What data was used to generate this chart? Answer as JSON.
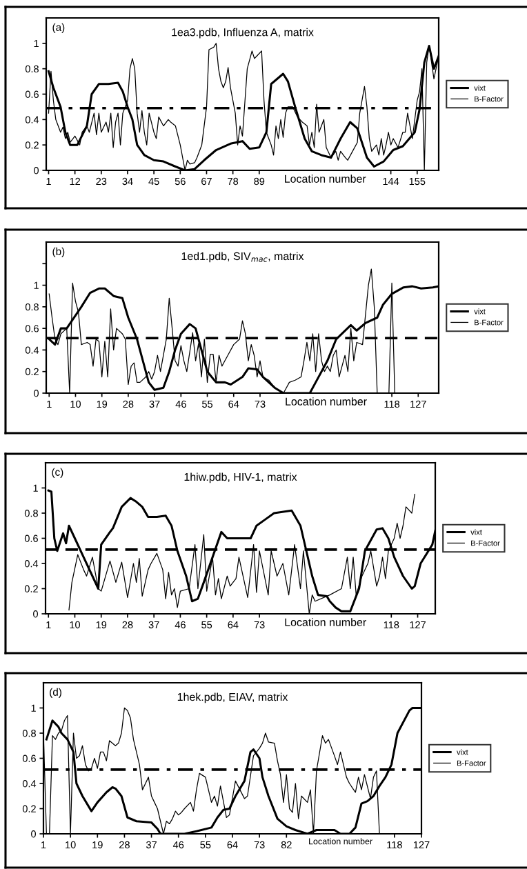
{
  "chart_data": [
    {
      "type": "line",
      "title": "1ea3.pdb, Influenza A, matrix",
      "xlabel": "Location number",
      "annotations": [
        "(a)"
      ],
      "xlim": [
        0,
        164
      ],
      "ylim": [
        0,
        1.2
      ],
      "xticks": [
        1,
        12,
        23,
        34,
        45,
        56,
        67,
        78,
        89,
        144,
        155
      ],
      "yticks": [
        0,
        0.2,
        0.4,
        0.6,
        0.8,
        1
      ],
      "legend": "right",
      "grid": false,
      "ref_lines": [
        {
          "axis": "y",
          "value": 0.49,
          "color": "#000000",
          "line_style": "dashdot"
        }
      ],
      "series": [
        {
          "name": "vixt",
          "color": "#000000",
          "x": [
            1,
            3,
            6,
            8,
            10,
            13,
            17,
            19,
            22,
            26,
            30,
            32,
            34,
            36,
            38,
            41,
            45,
            49,
            54,
            58,
            62,
            66,
            71,
            77,
            82,
            85,
            89,
            92,
            94,
            99,
            101,
            104,
            108,
            111,
            115,
            119,
            123,
            127,
            130,
            134,
            137,
            141,
            145,
            149,
            154,
            156,
            158,
            160,
            162,
            164
          ],
          "values": [
            0.78,
            0.65,
            0.5,
            0.3,
            0.2,
            0.2,
            0.35,
            0.6,
            0.68,
            0.68,
            0.69,
            0.62,
            0.5,
            0.4,
            0.2,
            0.12,
            0.08,
            0.07,
            0.03,
            0.0,
            0.01,
            0.08,
            0.16,
            0.21,
            0.23,
            0.17,
            0.18,
            0.3,
            0.68,
            0.76,
            0.7,
            0.5,
            0.25,
            0.15,
            0.12,
            0.1,
            0.25,
            0.38,
            0.33,
            0.1,
            0.03,
            0.07,
            0.16,
            0.19,
            0.3,
            0.48,
            0.85,
            0.98,
            0.8,
            0.9
          ]
        },
        {
          "name": "B-Factor",
          "color": "#000000",
          "x": [
            1,
            2,
            3,
            4,
            6,
            7,
            8,
            9,
            10,
            12,
            14,
            15,
            17,
            18,
            20,
            21,
            22,
            23,
            25,
            26,
            27,
            28,
            29,
            30,
            31,
            32,
            34,
            35,
            36,
            37,
            38,
            39,
            40,
            41,
            42,
            43,
            45,
            46,
            47,
            49,
            51,
            52,
            54,
            56,
            58,
            59,
            60,
            62,
            63,
            65,
            67,
            68,
            69,
            70,
            71,
            72,
            73,
            74,
            75,
            76,
            77,
            79,
            80,
            81,
            82,
            84,
            86,
            87,
            88,
            90,
            91,
            92,
            94,
            95,
            96,
            97,
            98,
            99,
            100,
            101,
            103,
            105,
            107,
            109,
            110,
            111,
            112,
            113,
            114,
            116,
            117,
            119,
            121,
            122,
            123,
            125,
            126,
            128,
            130,
            131,
            133,
            134,
            135,
            136,
            138,
            139,
            140,
            141,
            142,
            143,
            144,
            145,
            147,
            149,
            150,
            151,
            153,
            155,
            156,
            157,
            158,
            159,
            160,
            162,
            164
          ],
          "values": [
            0.45,
            0.78,
            0.55,
            0.4,
            0.3,
            0.34,
            0.25,
            0.3,
            0.22,
            0.27,
            0.2,
            0.3,
            0.35,
            0.3,
            0.45,
            0.28,
            0.45,
            0.3,
            0.38,
            0.3,
            0.45,
            0.18,
            0.38,
            0.45,
            0.2,
            0.45,
            0.55,
            0.8,
            0.88,
            0.8,
            0.45,
            0.3,
            0.47,
            0.3,
            0.2,
            0.45,
            0.3,
            0.25,
            0.42,
            0.35,
            0.4,
            0.38,
            0.35,
            0.2,
            0.0,
            0.08,
            0.05,
            0.06,
            0.1,
            0.2,
            0.5,
            0.95,
            0.96,
            0.97,
            1.0,
            0.8,
            0.7,
            0.65,
            0.7,
            0.81,
            0.65,
            0.45,
            0.2,
            0.35,
            0.27,
            0.8,
            0.94,
            0.88,
            0.9,
            0.94,
            0.55,
            0.3,
            0.2,
            0.12,
            0.35,
            0.25,
            0.4,
            0.26,
            0.45,
            0.5,
            0.5,
            0.42,
            0.38,
            0.35,
            0.2,
            0.3,
            0.18,
            0.52,
            0.3,
            0.4,
            0.18,
            0.1,
            0.15,
            0.08,
            0.15,
            0.1,
            0.08,
            0.15,
            0.22,
            0.45,
            0.66,
            0.5,
            0.25,
            0.15,
            0.2,
            0.12,
            0.25,
            0.12,
            0.2,
            0.3,
            0.2,
            0.25,
            0.18,
            0.3,
            0.3,
            0.45,
            0.25,
            0.55,
            0.62,
            0.8,
            0.0,
            0.85,
            0.98,
            0.72,
            0.9
          ]
        }
      ]
    },
    {
      "type": "line",
      "title": "1ed1.pdb, SIV$_{mac}$, matrix",
      "xlabel": "Location number",
      "annotations": [
        "(b)"
      ],
      "xlim": [
        0,
        134
      ],
      "ylim": [
        0,
        1.4
      ],
      "xticks": [
        1,
        10,
        19,
        28,
        37,
        46,
        55,
        64,
        73,
        118,
        127
      ],
      "yticks": [
        0,
        0.2,
        0.4,
        0.6,
        0.8,
        1,
        {
          "value": 1.2,
          "label": null
        }
      ],
      "legend": "right",
      "grid": false,
      "ref_lines": [
        {
          "axis": "y",
          "value": 0.51,
          "color": "#000000",
          "line_style": "dashed"
        }
      ],
      "series": [
        {
          "name": "vixt",
          "color": "#000000",
          "x": [
            1,
            3,
            5,
            7,
            9,
            12,
            15,
            18,
            20,
            23,
            26,
            28,
            31,
            33,
            35,
            37,
            40,
            42,
            44,
            46,
            49,
            51,
            53,
            55,
            58,
            61,
            63,
            67,
            69,
            72,
            74,
            78,
            81,
            90,
            92,
            96,
            99,
            104,
            106,
            109,
            113,
            115,
            118,
            122,
            125,
            128,
            132,
            134
          ],
          "values": [
            0.5,
            0.45,
            0.6,
            0.6,
            0.68,
            0.8,
            0.93,
            0.97,
            0.97,
            0.9,
            0.88,
            0.7,
            0.5,
            0.3,
            0.1,
            0.03,
            0.05,
            0.2,
            0.4,
            0.55,
            0.64,
            0.6,
            0.4,
            0.2,
            0.1,
            0.1,
            0.08,
            0.15,
            0.23,
            0.22,
            0.15,
            0.05,
            0.0,
            0.0,
            0.1,
            0.3,
            0.5,
            0.63,
            0.58,
            0.65,
            0.7,
            0.82,
            0.92,
            0.98,
            0.99,
            0.97,
            0.98,
            0.99
          ]
        },
        {
          "name": "B-Factor",
          "color": "#000000",
          "x": [
            1,
            2,
            3,
            4,
            5,
            7,
            8,
            9,
            10,
            11,
            12,
            14,
            15,
            16,
            17,
            18,
            19,
            20,
            21,
            22,
            23,
            24,
            26,
            27,
            28,
            29,
            30,
            31,
            32,
            34,
            35,
            36,
            37,
            38,
            39,
            41,
            42,
            43,
            44,
            45,
            46,
            47,
            48,
            50,
            51,
            52,
            53,
            54,
            55,
            56,
            57,
            58,
            59,
            60,
            61,
            62,
            64,
            66,
            67,
            68,
            69,
            70,
            71,
            72,
            73,
            74,
            76,
            78,
            81,
            82,
            83,
            85,
            87,
            88,
            89,
            90,
            91,
            92,
            93,
            94,
            95,
            96,
            97,
            98,
            99,
            100,
            101,
            102,
            103,
            104,
            105,
            106,
            108,
            110,
            111,
            112,
            113,
            117,
            118,
            119
          ],
          "values": [
            0.92,
            0.7,
            0.5,
            0.45,
            0.55,
            0.6,
            0.0,
            1.02,
            0.85,
            0.75,
            0.45,
            0.47,
            0.45,
            0.25,
            0.5,
            0.48,
            0.15,
            0.48,
            0.15,
            0.78,
            0.4,
            0.6,
            0.55,
            0.5,
            0.08,
            0.25,
            0.28,
            0.1,
            0.1,
            0.15,
            0.2,
            0.13,
            0.2,
            0.35,
            0.2,
            0.5,
            0.88,
            0.6,
            0.3,
            0.25,
            0.44,
            0.3,
            0.2,
            0.56,
            0.3,
            0.46,
            0.15,
            0.5,
            0.1,
            0.36,
            0.36,
            0.1,
            0.35,
            0.25,
            0.3,
            0.35,
            0.45,
            0.5,
            0.67,
            0.55,
            0.3,
            0.45,
            0.35,
            0.15,
            0.3,
            0.15,
            0.12,
            0.05,
            0.0,
            0.05,
            0.1,
            0.12,
            0.15,
            0.3,
            0.47,
            0.3,
            0.55,
            0.2,
            0.55,
            0.3,
            0.2,
            0.25,
            0.2,
            0.35,
            0.4,
            0.15,
            0.25,
            0.35,
            0.2,
            0.6,
            0.3,
            0.47,
            0.45,
            1.0,
            1.15,
            0.8,
            0.0,
            0.0,
            1.02,
            0.0
          ]
        }
      ]
    },
    {
      "type": "line",
      "title": "1hiw.pdb, HIV-1, matrix",
      "xlabel": "Location number",
      "annotations": [
        "(c)"
      ],
      "xlim": [
        0,
        133
      ],
      "ylim": [
        0,
        1.2
      ],
      "xticks": [
        1,
        10,
        19,
        28,
        37,
        46,
        55,
        64,
        73,
        118,
        127
      ],
      "yticks": [
        0,
        0.2,
        0.4,
        0.6,
        0.8,
        1
      ],
      "legend": "right",
      "grid": false,
      "ref_lines": [
        {
          "axis": "y",
          "value": 0.51,
          "color": "#000000",
          "line_style": "dashed"
        }
      ],
      "series": [
        {
          "name": "vixt",
          "color": "#000000",
          "x": [
            1,
            2,
            3,
            4,
            6,
            7,
            8,
            10,
            13,
            16,
            18,
            19,
            22,
            23,
            26,
            29,
            31,
            33,
            35,
            38,
            41,
            43,
            45,
            48,
            50,
            52,
            54,
            57,
            60,
            62,
            70,
            72,
            75,
            78,
            84,
            87,
            89,
            91,
            93,
            96,
            97,
            99,
            101,
            104,
            105,
            107,
            109,
            113,
            115,
            117,
            119,
            122,
            125,
            126,
            128,
            132,
            133
          ],
          "values": [
            0.98,
            0.97,
            0.6,
            0.5,
            0.64,
            0.56,
            0.7,
            0.6,
            0.45,
            0.3,
            0.2,
            0.55,
            0.65,
            0.68,
            0.85,
            0.92,
            0.89,
            0.85,
            0.77,
            0.77,
            0.78,
            0.7,
            0.5,
            0.3,
            0.1,
            0.12,
            0.25,
            0.45,
            0.65,
            0.6,
            0.6,
            0.7,
            0.75,
            0.8,
            0.82,
            0.7,
            0.5,
            0.3,
            0.15,
            0.14,
            0.1,
            0.05,
            0.02,
            0.02,
            0.08,
            0.2,
            0.5,
            0.67,
            0.68,
            0.6,
            0.45,
            0.3,
            0.2,
            0.22,
            0.4,
            0.55,
            0.66
          ]
        },
        {
          "name": "B-Factor",
          "color": "#000000",
          "x": [
            8,
            9,
            11,
            13,
            14,
            16,
            18,
            19,
            22,
            24,
            26,
            28,
            30,
            31,
            32,
            33,
            35,
            36,
            38,
            40,
            41,
            42,
            43,
            44,
            45,
            46,
            49,
            51,
            52,
            54,
            55,
            57,
            58,
            59,
            60,
            62,
            63,
            65,
            66,
            69,
            71,
            72,
            73,
            76,
            77,
            79,
            81,
            83,
            85,
            87,
            88,
            90,
            91,
            92,
            97,
            101,
            103,
            104,
            105,
            106,
            108,
            110,
            111,
            113,
            114,
            115,
            116,
            117,
            119,
            120,
            121,
            122,
            123,
            125,
            126
          ],
          "values": [
            0.03,
            0.25,
            0.47,
            0.35,
            0.3,
            0.45,
            0.2,
            0.18,
            0.42,
            0.25,
            0.41,
            0.13,
            0.4,
            0.25,
            0.44,
            0.14,
            0.35,
            0.4,
            0.48,
            0.35,
            0.12,
            0.33,
            0.15,
            0.2,
            0.05,
            0.18,
            0.2,
            0.55,
            0.2,
            0.63,
            0.18,
            0.45,
            0.15,
            0.28,
            0.12,
            0.3,
            0.22,
            0.28,
            0.45,
            0.13,
            0.55,
            0.17,
            0.5,
            0.15,
            0.5,
            0.3,
            0.4,
            0.15,
            0.55,
            0.2,
            0.5,
            0.0,
            0.15,
            0.1,
            0.15,
            0.2,
            0.45,
            0.2,
            0.45,
            0.15,
            0.3,
            0.4,
            0.5,
            0.22,
            0.3,
            0.45,
            0.28,
            0.5,
            0.6,
            0.72,
            0.6,
            0.7,
            0.85,
            0.8,
            0.95
          ]
        }
      ]
    },
    {
      "type": "line",
      "title": "1hek.pdb, EIAV, matrix",
      "xlabel": "Location number",
      "annotations": [
        "(d)"
      ],
      "xlim": [
        1,
        127
      ],
      "ylim": [
        0,
        1.2
      ],
      "xticks": [
        1,
        10,
        19,
        28,
        37,
        46,
        55,
        64,
        73,
        82,
        118,
        127
      ],
      "yticks": [
        0,
        0.2,
        0.4,
        0.6,
        0.8,
        1
      ],
      "legend": "right",
      "grid": false,
      "ref_lines": [
        {
          "axis": "y",
          "value": 0.51,
          "color": "#000000",
          "line_style": "dashdot"
        }
      ],
      "series": [
        {
          "name": "vixt",
          "color": "#000000",
          "x": [
            2,
            4,
            6,
            7,
            9,
            11,
            12,
            14,
            17,
            19,
            22,
            24,
            25,
            27,
            29,
            32,
            37,
            39,
            40,
            48,
            52,
            57,
            59,
            61,
            63,
            65,
            68,
            70,
            71,
            73,
            74,
            76,
            79,
            82,
            85,
            89,
            92,
            98,
            100,
            103,
            105,
            107,
            109,
            111,
            113,
            115,
            117,
            119,
            123,
            124,
            127
          ],
          "values": [
            0.75,
            0.9,
            0.85,
            0.8,
            0.75,
            0.65,
            0.4,
            0.3,
            0.18,
            0.25,
            0.33,
            0.37,
            0.36,
            0.3,
            0.13,
            0.1,
            0.09,
            0.04,
            0.0,
            0.0,
            0.02,
            0.05,
            0.13,
            0.19,
            0.2,
            0.3,
            0.42,
            0.65,
            0.67,
            0.6,
            0.45,
            0.3,
            0.12,
            0.06,
            0.03,
            0.0,
            0.03,
            0.03,
            0.0,
            0.0,
            0.05,
            0.24,
            0.26,
            0.3,
            0.38,
            0.45,
            0.55,
            0.8,
            0.98,
            1.0,
            1.0
          ]
        },
        {
          "name": "B-Factor",
          "color": "#000000",
          "x": [
            1,
            2,
            3,
            4,
            5,
            6,
            7,
            8,
            9,
            10,
            11,
            12,
            13,
            14,
            15,
            16,
            17,
            18,
            19,
            20,
            21,
            22,
            23,
            25,
            26,
            27,
            28,
            29,
            30,
            31,
            33,
            34,
            35,
            36,
            37,
            38,
            39,
            40,
            41,
            42,
            43,
            44,
            45,
            46,
            47,
            48,
            50,
            51,
            52,
            53,
            55,
            57,
            58,
            59,
            60,
            62,
            63,
            65,
            68,
            69,
            71,
            73,
            74,
            75,
            76,
            78,
            79,
            80,
            81,
            82,
            83,
            84,
            85,
            86,
            87,
            89,
            90,
            91,
            92,
            94,
            95,
            96,
            98,
            99,
            100,
            102,
            103,
            105,
            106,
            107,
            108,
            110,
            111,
            112,
            113
          ],
          "values": [
            0.8,
            0.0,
            0.0,
            0.78,
            0.75,
            0.8,
            0.82,
            0.9,
            0.94,
            0.0,
            0.8,
            0.6,
            0.62,
            0.7,
            0.55,
            0.5,
            0.52,
            0.6,
            0.52,
            0.65,
            0.65,
            0.58,
            0.74,
            0.7,
            0.72,
            0.8,
            1.0,
            0.98,
            0.92,
            0.75,
            0.55,
            0.35,
            0.4,
            0.45,
            0.3,
            0.25,
            0.2,
            0.1,
            0.0,
            0.1,
            0.08,
            0.12,
            0.18,
            0.15,
            0.17,
            0.2,
            0.25,
            0.18,
            0.35,
            0.48,
            0.45,
            0.25,
            0.3,
            0.22,
            0.38,
            0.13,
            0.15,
            0.42,
            0.28,
            0.3,
            0.62,
            0.68,
            0.72,
            0.8,
            0.73,
            0.72,
            0.58,
            0.47,
            0.25,
            0.47,
            0.2,
            0.17,
            0.4,
            0.12,
            0.3,
            0.25,
            0.35,
            0.0,
            0.5,
            0.78,
            0.72,
            0.75,
            0.62,
            0.55,
            0.65,
            0.45,
            0.4,
            0.33,
            0.45,
            0.35,
            0.47,
            0.28,
            0.45,
            0.5,
            0.0
          ]
        }
      ]
    }
  ]
}
